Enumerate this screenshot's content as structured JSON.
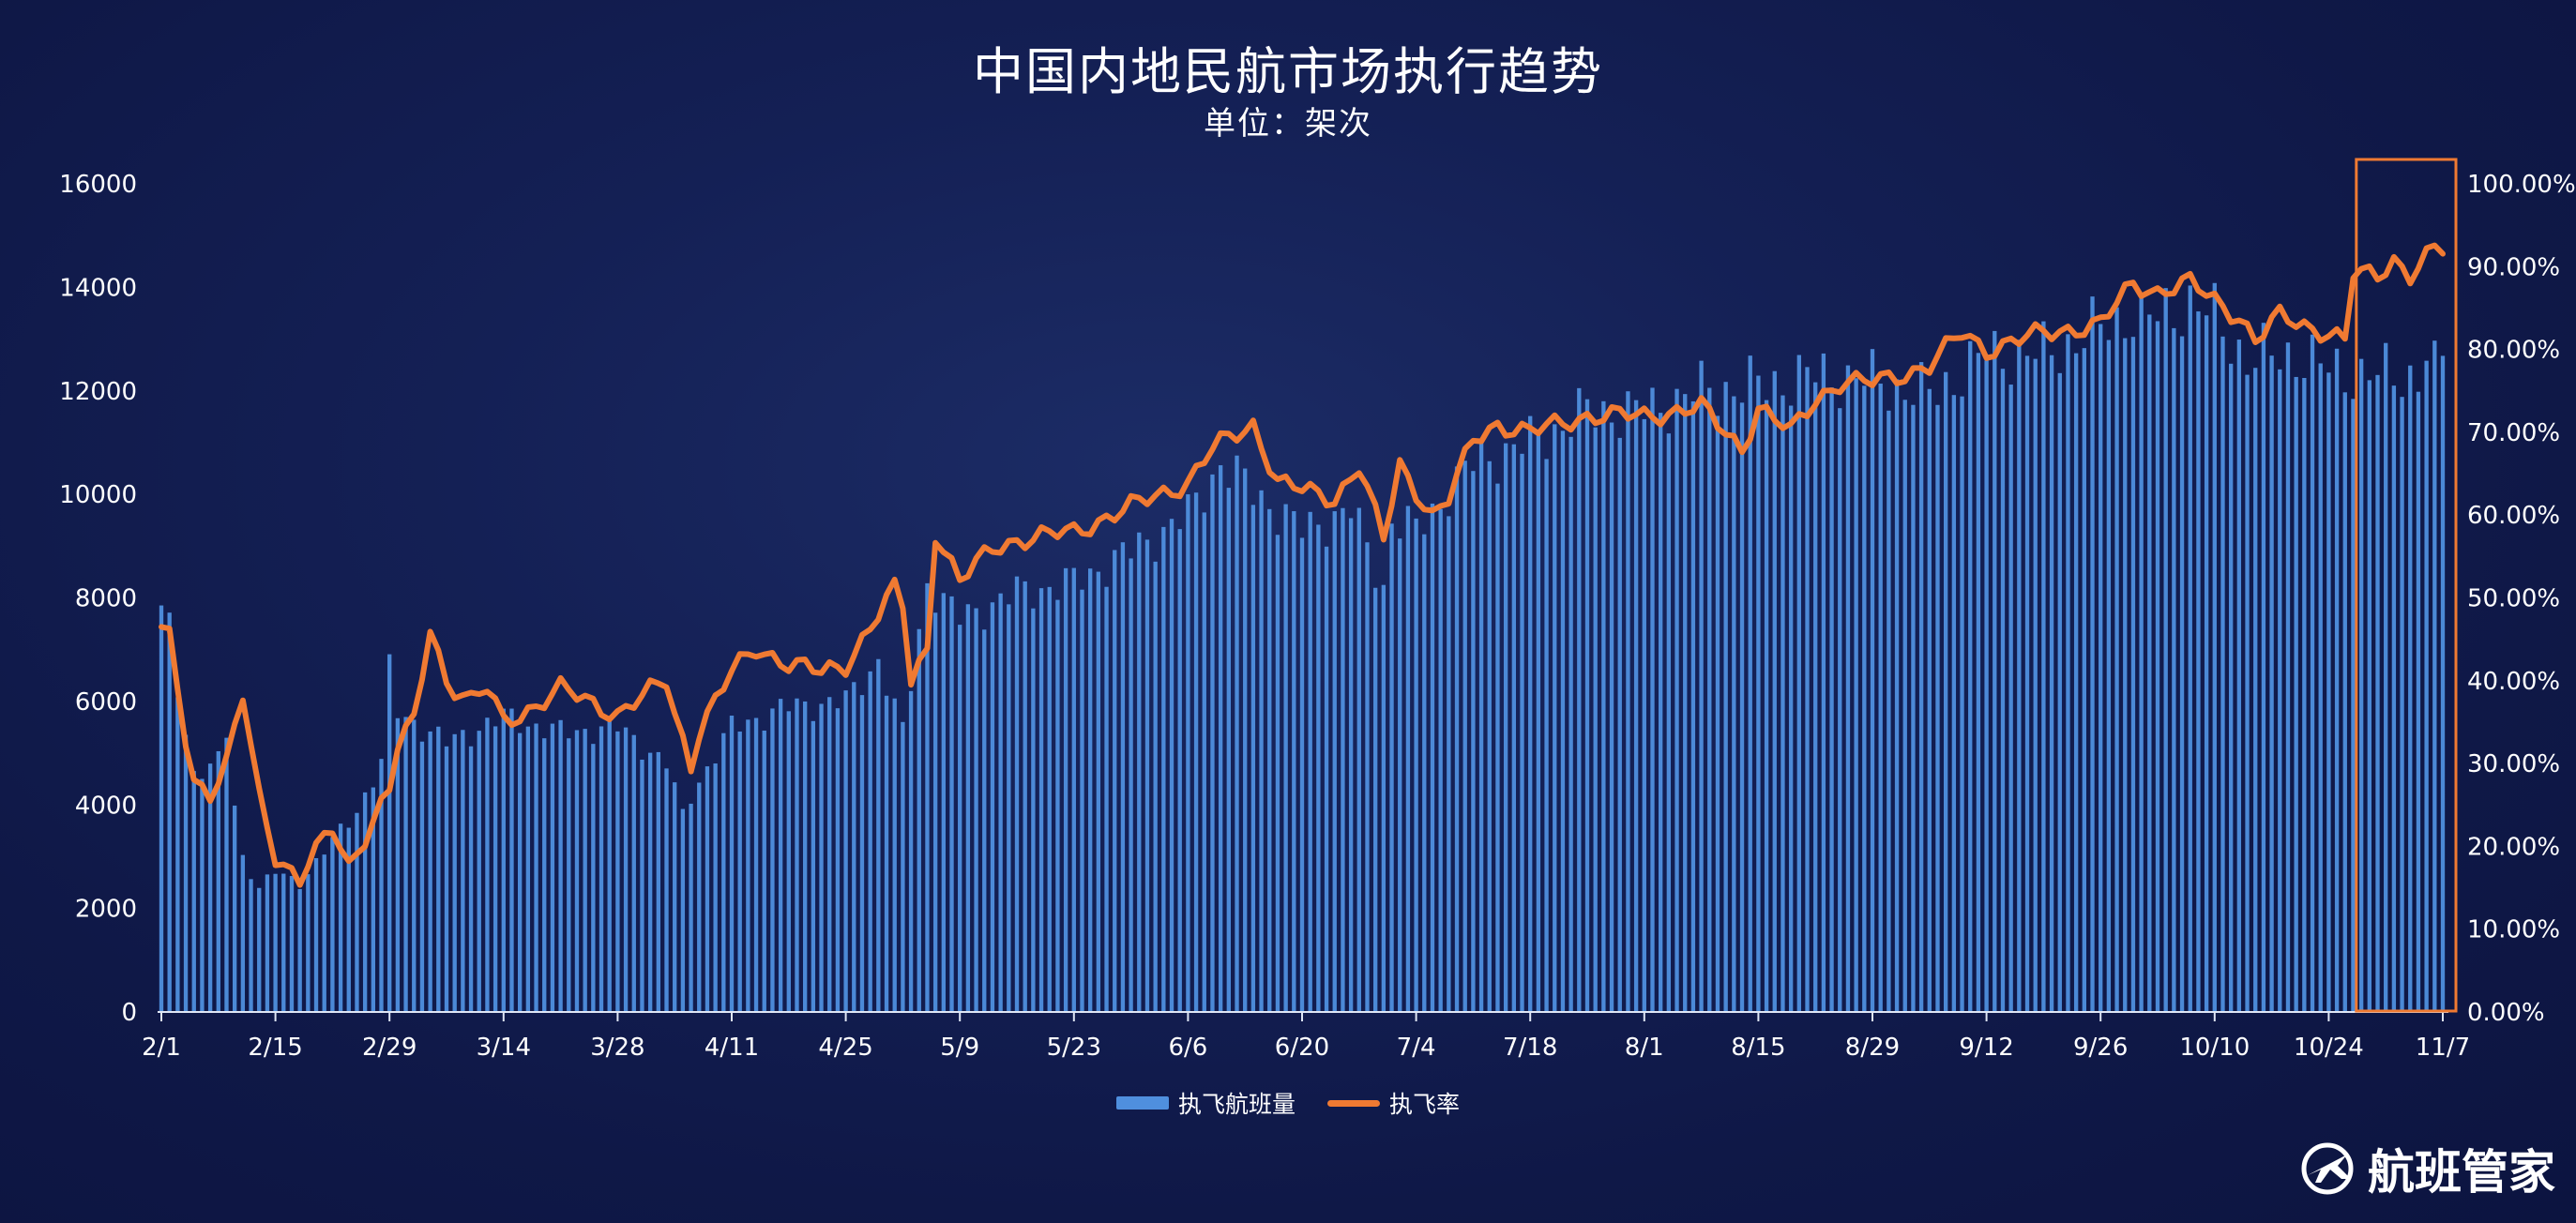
{
  "title": "中国内地民航市场执行趋势",
  "subtitle": "单位：架次",
  "brand": "航班管家",
  "colors": {
    "bar": "#4f8fde",
    "line": "#f07a32",
    "highlight_box": "#f07a32",
    "axis": "#dfe6f5"
  },
  "chart_data": {
    "type": "bar+line",
    "x_start": "2/1",
    "x_end": "11/7",
    "x_tick_labels": [
      "2/1",
      "2/15",
      "2/29",
      "3/14",
      "3/28",
      "4/11",
      "4/25",
      "5/9",
      "5/23",
      "6/6",
      "6/20",
      "7/4",
      "7/18",
      "8/1",
      "8/15",
      "8/29",
      "9/12",
      "9/26",
      "10/10",
      "10/24",
      "11/7"
    ],
    "y_left_ticks": [
      "0",
      "2000",
      "4000",
      "6000",
      "8000",
      "10000",
      "12000",
      "14000",
      "16000"
    ],
    "y_left_range": [
      0,
      16000
    ],
    "y_right_ticks": [
      "0.00%",
      "10.00%",
      "20.00%",
      "30.00%",
      "40.00%",
      "50.00%",
      "60.00%",
      "70.00%",
      "80.00%",
      "90.00%",
      "100.00%"
    ],
    "y_right_range": [
      0,
      100
    ],
    "grid": false,
    "legend_position": "bottom",
    "highlight": "last ~10 days (10/29–11/7) boxed",
    "series": [
      {
        "name": "执飞航班量",
        "kind": "bar",
        "axis": "left",
        "key_points": [
          [
            "2/1",
            7700
          ],
          [
            "2/2",
            7400
          ],
          [
            "2/3",
            6300
          ],
          [
            "2/5",
            4600
          ],
          [
            "2/8",
            4800
          ],
          [
            "2/9",
            5400
          ],
          [
            "2/10",
            4000
          ],
          [
            "2/11",
            3000
          ],
          [
            "2/13",
            2400
          ],
          [
            "2/15",
            2700
          ],
          [
            "2/18",
            2500
          ],
          [
            "2/22",
            3300
          ],
          [
            "2/25",
            3900
          ],
          [
            "2/28",
            4800
          ],
          [
            "2/29",
            6600
          ],
          [
            "3/1",
            5800
          ],
          [
            "3/7",
            5200
          ],
          [
            "3/14",
            5700
          ],
          [
            "3/21",
            5400
          ],
          [
            "3/28",
            5500
          ],
          [
            "4/3",
            4800
          ],
          [
            "4/5",
            3800
          ],
          [
            "4/6",
            4200
          ],
          [
            "4/11",
            5500
          ],
          [
            "4/18",
            5900
          ],
          [
            "4/25",
            6000
          ],
          [
            "4/29",
            6800
          ],
          [
            "5/2",
            5400
          ],
          [
            "5/5",
            8300
          ],
          [
            "5/9",
            7600
          ],
          [
            "5/16",
            8100
          ],
          [
            "5/23",
            8300
          ],
          [
            "5/30",
            8900
          ],
          [
            "6/6",
            9600
          ],
          [
            "6/10",
            10600
          ],
          [
            "6/13",
            10200
          ],
          [
            "6/20",
            9300
          ],
          [
            "6/26",
            9700
          ],
          [
            "6/30",
            8200
          ],
          [
            "7/1",
            9500
          ],
          [
            "7/4",
            9300
          ],
          [
            "7/11",
            10600
          ],
          [
            "7/18",
            11000
          ],
          [
            "7/25",
            11600
          ],
          [
            "8/1",
            11600
          ],
          [
            "8/8",
            12000
          ],
          [
            "8/15",
            12100
          ],
          [
            "8/22",
            12300
          ],
          [
            "8/29",
            12200
          ],
          [
            "9/5",
            11900
          ],
          [
            "9/12",
            12700
          ],
          [
            "9/19",
            12700
          ],
          [
            "9/26",
            13200
          ],
          [
            "9/30",
            13500
          ],
          [
            "10/1",
            13300
          ],
          [
            "10/7",
            13700
          ],
          [
            "10/10",
            13400
          ],
          [
            "10/14",
            12600
          ],
          [
            "10/20",
            12700
          ],
          [
            "10/24",
            12400
          ],
          [
            "10/28",
            12300
          ],
          [
            "11/1",
            12300
          ],
          [
            "11/4",
            12300
          ],
          [
            "11/5",
            12700
          ],
          [
            "11/6",
            12300
          ],
          [
            "11/7",
            12700
          ]
        ]
      },
      {
        "name": "执飞率",
        "kind": "line",
        "axis": "right",
        "unit": "%",
        "key_points": [
          [
            "2/1",
            46
          ],
          [
            "2/2",
            45
          ],
          [
            "2/4",
            33
          ],
          [
            "2/5",
            28
          ],
          [
            "2/7",
            26.5
          ],
          [
            "2/9",
            30
          ],
          [
            "2/11",
            38
          ],
          [
            "2/13",
            26
          ],
          [
            "2/15",
            19
          ],
          [
            "2/18",
            16
          ],
          [
            "2/19",
            18
          ],
          [
            "2/22",
            22
          ],
          [
            "2/24",
            17.5
          ],
          [
            "2/25",
            19.5
          ],
          [
            "2/29",
            27
          ],
          [
            "3/1",
            32
          ],
          [
            "3/3",
            35
          ],
          [
            "3/5",
            46.5
          ],
          [
            "3/7",
            40
          ],
          [
            "3/10",
            37.5
          ],
          [
            "3/12",
            39
          ],
          [
            "3/14",
            35
          ],
          [
            "3/18",
            37
          ],
          [
            "3/21",
            39
          ],
          [
            "3/28",
            36
          ],
          [
            "4/3",
            40
          ],
          [
            "4/4",
            36
          ],
          [
            "4/6",
            30
          ],
          [
            "4/7",
            34
          ],
          [
            "4/11",
            41
          ],
          [
            "4/14",
            44
          ],
          [
            "4/18",
            42
          ],
          [
            "4/22",
            41
          ],
          [
            "4/25",
            42
          ],
          [
            "5/1",
            51
          ],
          [
            "5/2",
            49
          ],
          [
            "5/3",
            40
          ],
          [
            "5/5",
            44
          ],
          [
            "5/6",
            58
          ],
          [
            "5/9",
            52
          ],
          [
            "5/13",
            56
          ],
          [
            "5/16",
            57
          ],
          [
            "5/23",
            58
          ],
          [
            "5/30",
            61
          ],
          [
            "6/6",
            64
          ],
          [
            "6/9",
            68
          ],
          [
            "6/14",
            71
          ],
          [
            "6/17",
            64
          ],
          [
            "6/20",
            63
          ],
          [
            "6/24",
            62
          ],
          [
            "6/27",
            66
          ],
          [
            "6/30",
            57
          ],
          [
            "7/2",
            66
          ],
          [
            "7/4",
            63
          ],
          [
            "7/6",
            60
          ],
          [
            "7/8",
            62
          ],
          [
            "7/11",
            69
          ],
          [
            "7/14",
            71
          ],
          [
            "7/18",
            70
          ],
          [
            "7/25",
            72
          ],
          [
            "8/1",
            72
          ],
          [
            "8/8",
            73
          ],
          [
            "8/13",
            68
          ],
          [
            "8/15",
            73
          ],
          [
            "8/19",
            70
          ],
          [
            "8/22",
            74
          ],
          [
            "8/25",
            76
          ],
          [
            "8/29",
            76
          ],
          [
            "9/5",
            78
          ],
          [
            "9/9",
            82
          ],
          [
            "9/12",
            80
          ],
          [
            "9/19",
            82
          ],
          [
            "9/26",
            83
          ],
          [
            "9/30",
            88
          ],
          [
            "10/3",
            87
          ],
          [
            "10/7",
            88
          ],
          [
            "10/10",
            86
          ],
          [
            "10/13",
            84
          ],
          [
            "10/15",
            81
          ],
          [
            "10/18",
            84
          ],
          [
            "10/24",
            82
          ],
          [
            "10/26",
            81
          ],
          [
            "10/27",
            89
          ],
          [
            "10/30",
            89
          ],
          [
            "11/1",
            91
          ],
          [
            "11/3",
            89
          ],
          [
            "11/5",
            91
          ],
          [
            "11/6",
            92
          ],
          [
            "11/7",
            92
          ]
        ]
      }
    ]
  }
}
